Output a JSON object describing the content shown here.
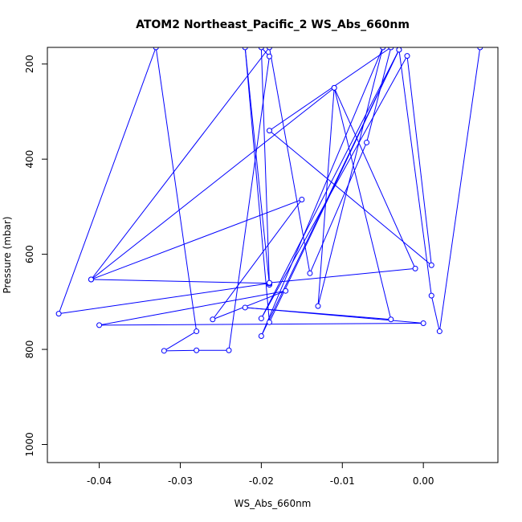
{
  "chart_data": {
    "type": "line",
    "title": "ATOM2 Northeast_Pacific_2 WS_Abs_660nm",
    "xlabel": "WS_Abs_660nm",
    "ylabel": "Pressure (mbar)",
    "xlim": [
      -0.0464,
      0.0092
    ],
    "ylim": [
      1038,
      165
    ],
    "y_axis_inverted": true,
    "x_ticks": [
      -0.04,
      -0.03,
      -0.02,
      -0.01,
      0.0
    ],
    "x_tick_labels": [
      "-0.04",
      "-0.03",
      "-0.02",
      "-0.01",
      "0.00"
    ],
    "y_ticks": [
      200,
      400,
      600,
      800,
      1000
    ],
    "y_tick_labels": [
      "200",
      "400",
      "600",
      "800",
      "1000"
    ],
    "grid": false,
    "line_color": "#0000ff",
    "marker": "open-circle",
    "series": [
      {
        "points": [
          [
            0.007,
            165
          ],
          [
            0.002,
            762
          ],
          [
            0.001,
            687
          ],
          [
            -0.003,
            170
          ],
          [
            -0.019,
            743
          ],
          [
            -0.022,
            165
          ],
          [
            -0.019,
            664
          ],
          [
            -0.019,
            664
          ],
          [
            -0.02,
            165
          ],
          [
            -0.019,
            184
          ],
          [
            -0.024,
            802
          ],
          [
            -0.028,
            802
          ],
          [
            -0.032,
            803
          ],
          [
            -0.028,
            762
          ],
          [
            -0.033,
            165
          ],
          [
            -0.045,
            725
          ],
          [
            -0.019,
            661
          ],
          [
            -0.041,
            653
          ],
          [
            -0.015,
            485
          ],
          [
            -0.026,
            737
          ],
          [
            -0.017,
            677
          ],
          [
            -0.04,
            749
          ],
          [
            0.0,
            745
          ],
          [
            -0.022,
            712
          ],
          [
            -0.004,
            737
          ],
          [
            -0.011,
            250
          ],
          [
            -0.013,
            709
          ],
          [
            -0.005,
            165
          ],
          [
            -0.02,
            772
          ],
          [
            -0.003,
            170
          ],
          [
            -0.02,
            735
          ],
          [
            -0.002,
            183
          ],
          [
            0.001,
            623
          ],
          [
            -0.019,
            340
          ],
          [
            -0.004,
            165
          ],
          [
            -0.007,
            365
          ],
          [
            -0.014,
            640
          ],
          [
            -0.019,
            165
          ],
          [
            -0.041,
            653
          ],
          [
            -0.011,
            250
          ],
          [
            -0.001,
            630
          ],
          [
            -0.019,
            660
          ]
        ]
      }
    ]
  }
}
